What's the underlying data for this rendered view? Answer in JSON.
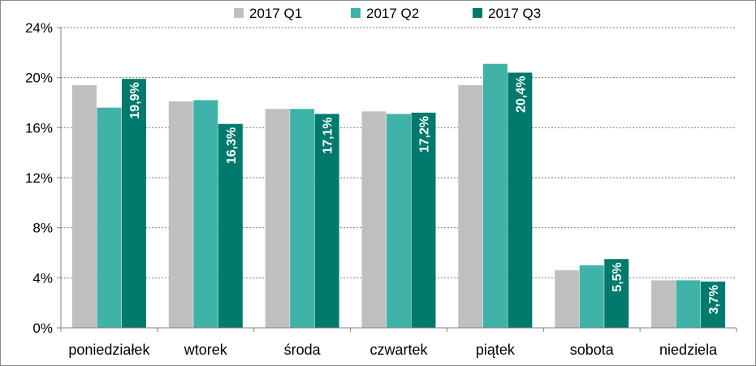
{
  "chart_data": {
    "type": "bar",
    "title": "",
    "xlabel": "",
    "ylabel": "",
    "ylim": [
      0,
      24
    ],
    "yticks": [
      "0%",
      "4%",
      "8%",
      "12%",
      "16%",
      "20%",
      "24%"
    ],
    "grid": "horizontal dotted",
    "legend_position": "top",
    "categories": [
      "poniedziałek",
      "wtorek",
      "środa",
      "czwartek",
      "piątek",
      "sobota",
      "niedziela"
    ],
    "series": [
      {
        "name": "2017 Q1",
        "color": "#bfbfbf",
        "values": [
          19.4,
          18.1,
          17.5,
          17.3,
          19.4,
          4.6,
          3.8
        ]
      },
      {
        "name": "2017 Q2",
        "color": "#3fb3a8",
        "values": [
          17.6,
          18.2,
          17.5,
          17.1,
          21.1,
          5.0,
          3.8
        ]
      },
      {
        "name": "2017 Q3",
        "color": "#007a6c",
        "values": [
          19.9,
          16.3,
          17.1,
          17.2,
          20.4,
          5.5,
          3.7
        ],
        "data_labels": [
          "19,9%",
          "16,3%",
          "17,1%",
          "17,2%",
          "20,4%",
          "5,5%",
          "3,7%"
        ]
      }
    ]
  }
}
